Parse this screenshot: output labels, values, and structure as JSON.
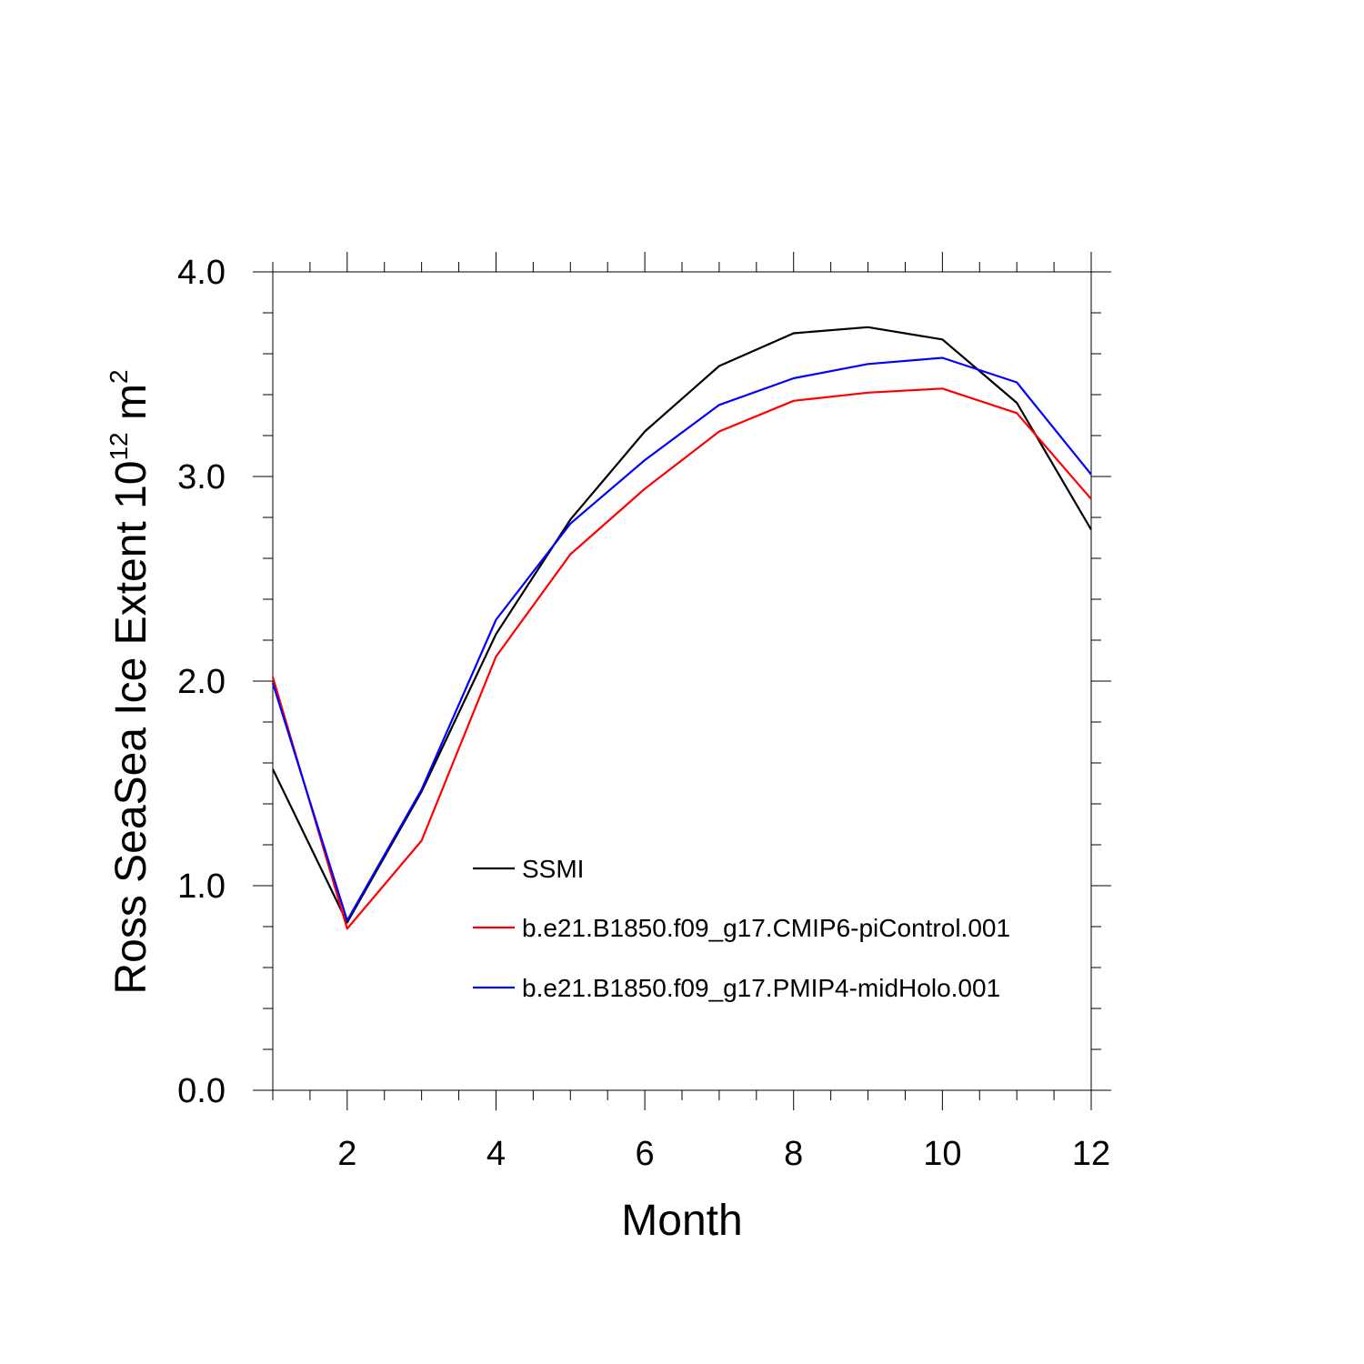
{
  "chart_data": {
    "type": "line",
    "title": "",
    "xlabel": "Month",
    "ylabel_main": "Ross SeaSea Ice Extent 10",
    "ylabel_exp": "12",
    "ylabel_unit": "m",
    "ylabel_unit_exp": "2",
    "xlim": [
      1,
      12
    ],
    "ylim": [
      0,
      4
    ],
    "x_ticks": [
      2,
      4,
      6,
      8,
      10,
      12
    ],
    "x_tick_labels": [
      "2",
      "4",
      "6",
      "8",
      "10",
      "12"
    ],
    "y_ticks": [
      0,
      1,
      2,
      3,
      4
    ],
    "y_tick_labels": [
      "0.0",
      "1.0",
      "2.0",
      "3.0",
      "4.0"
    ],
    "x": [
      1,
      2,
      3,
      4,
      5,
      6,
      7,
      8,
      9,
      10,
      11,
      12
    ],
    "series": [
      {
        "name": "SSMI",
        "color": "#000000",
        "values": [
          1.57,
          0.82,
          1.46,
          2.23,
          2.79,
          3.22,
          3.54,
          3.7,
          3.73,
          3.67,
          3.36,
          2.74
        ]
      },
      {
        "name": "b.e21.B1850.f09_g17.CMIP6-piControl.001",
        "color": "#ff0000",
        "values": [
          2.02,
          0.79,
          1.22,
          2.12,
          2.62,
          2.94,
          3.22,
          3.37,
          3.41,
          3.43,
          3.31,
          2.89
        ]
      },
      {
        "name": "b.e21.B1850.f09_g17.PMIP4-midHolo.001",
        "color": "#0000ff",
        "values": [
          1.99,
          0.83,
          1.47,
          2.3,
          2.77,
          3.08,
          3.35,
          3.48,
          3.55,
          3.58,
          3.46,
          3.01
        ]
      }
    ],
    "legend_position": "lower-center"
  }
}
